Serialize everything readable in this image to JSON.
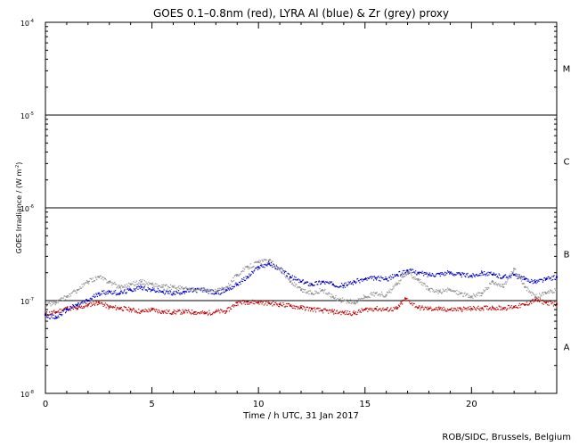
{
  "chart_data": {
    "type": "scatter",
    "title": "GOES 0.1–0.8nm (red), LYRA Al (blue) & Zr (grey) proxy",
    "xlabel": "Time / h UTC, 31 Jan 2017",
    "ylabel": "GOES Irradiance / (W m",
    "ylabel_exp": "-2",
    "ylabel_close": ")",
    "xlim": [
      0,
      24
    ],
    "ylim": [
      1e-08,
      0.0001
    ],
    "yscale": "log",
    "x_ticks": [
      {
        "value": 0,
        "label": "0"
      },
      {
        "value": 5,
        "label": "5"
      },
      {
        "value": 10,
        "label": "10"
      },
      {
        "value": 15,
        "label": "15"
      },
      {
        "value": 20,
        "label": "20"
      }
    ],
    "y_ticks": [
      {
        "value": 1e-08,
        "base": "10",
        "exp": "-8"
      },
      {
        "value": 1e-07,
        "base": "10",
        "exp": "-7"
      },
      {
        "value": 1e-06,
        "base": "10",
        "exp": "-6"
      },
      {
        "value": 1e-05,
        "base": "10",
        "exp": "-5"
      },
      {
        "value": 0.0001,
        "base": "10",
        "exp": "-4"
      }
    ],
    "class_lines": [
      1e-07,
      1e-06,
      1e-05
    ],
    "flare_classes": [
      {
        "label": "A",
        "value": 3.2e-08
      },
      {
        "label": "B",
        "value": 3.2e-07
      },
      {
        "label": "C",
        "value": 3.2e-06
      },
      {
        "label": "M",
        "value": 3.2e-05
      }
    ],
    "series": [
      {
        "color": "#c00000",
        "x": [
          0,
          0.5,
          1,
          1.5,
          2,
          2.5,
          3,
          3.5,
          4,
          4.5,
          5,
          5.5,
          6,
          6.5,
          7,
          7.5,
          8,
          8.5,
          9,
          9.5,
          10,
          10.5,
          11,
          11.5,
          12,
          12.5,
          13,
          13.5,
          14,
          14.5,
          15,
          15.5,
          16,
          16.5,
          16.9,
          17.5,
          18,
          18.5,
          19,
          19.5,
          20,
          20.5,
          21,
          21.5,
          22,
          22.5,
          23,
          23.5,
          24
        ],
        "y": [
          7.2e-08,
          7.5e-08,
          8.3e-08,
          8.2e-08,
          9e-08,
          9.6e-08,
          8.5e-08,
          8.3e-08,
          8e-08,
          7.6e-08,
          8e-08,
          7.6e-08,
          7.5e-08,
          7.6e-08,
          7.5e-08,
          7.3e-08,
          7.6e-08,
          7.7e-08,
          9.5e-08,
          9.7e-08,
          9.6e-08,
          9.4e-08,
          9.1e-08,
          8.8e-08,
          8.4e-08,
          8.1e-08,
          7.8e-08,
          7.6e-08,
          7.4e-08,
          7.3e-08,
          8e-08,
          8.2e-08,
          8e-08,
          8.2e-08,
          1.05e-07,
          8.4e-08,
          8.2e-08,
          8.1e-08,
          8e-08,
          8.1e-08,
          8.2e-08,
          8.3e-08,
          8.4e-08,
          8.3e-08,
          8.6e-08,
          9e-08,
          1.02e-07,
          9.5e-08,
          9.2e-08
        ]
      },
      {
        "color": "#0000c8",
        "x": [
          0,
          0.5,
          1,
          1.5,
          2,
          2.5,
          3,
          3.5,
          4,
          4.5,
          5,
          5.5,
          6,
          6.5,
          7,
          7.5,
          8,
          8.5,
          9,
          9.5,
          10,
          10.5,
          11,
          11.5,
          12,
          12.5,
          13,
          13.5,
          14,
          14.5,
          15,
          15.5,
          16,
          16.5,
          17,
          17.5,
          18,
          18.5,
          19,
          19.5,
          20,
          20.5,
          21,
          21.5,
          22,
          22.5,
          23,
          23.5,
          24
        ],
        "y": [
          7e-08,
          6.5e-08,
          8e-08,
          9e-08,
          1e-07,
          1.2e-07,
          1.25e-07,
          1.2e-07,
          1.3e-07,
          1.4e-07,
          1.3e-07,
          1.25e-07,
          1.2e-07,
          1.25e-07,
          1.3e-07,
          1.3e-07,
          1.2e-07,
          1.3e-07,
          1.5e-07,
          1.8e-07,
          2.3e-07,
          2.5e-07,
          2.2e-07,
          1.8e-07,
          1.6e-07,
          1.5e-07,
          1.6e-07,
          1.5e-07,
          1.45e-07,
          1.6e-07,
          1.7e-07,
          1.75e-07,
          1.7e-07,
          1.9e-07,
          2.1e-07,
          2e-07,
          1.9e-07,
          1.95e-07,
          2e-07,
          1.9e-07,
          1.85e-07,
          2e-07,
          1.9e-07,
          1.8e-07,
          1.9e-07,
          1.7e-07,
          1.6e-07,
          1.7e-07,
          1.8e-07
        ]
      },
      {
        "color": "#909090",
        "x": [
          0,
          0.5,
          1,
          1.5,
          2,
          2.5,
          3,
          3.5,
          4,
          4.5,
          5,
          5.5,
          6,
          6.5,
          7,
          7.5,
          8,
          8.5,
          9,
          9.5,
          10,
          10.5,
          11,
          11.5,
          12,
          12.5,
          13,
          13.5,
          14,
          14.5,
          15,
          15.5,
          16,
          16.5,
          17,
          17.5,
          18,
          18.5,
          19,
          19.5,
          20,
          20.5,
          21,
          21.5,
          22,
          22.5,
          23,
          23.5,
          24
        ],
        "y": [
          9e-08,
          9.5e-08,
          1.1e-07,
          1.3e-07,
          1.6e-07,
          1.8e-07,
          1.6e-07,
          1.4e-07,
          1.5e-07,
          1.6e-07,
          1.5e-07,
          1.4e-07,
          1.4e-07,
          1.35e-07,
          1.3e-07,
          1.3e-07,
          1.25e-07,
          1.4e-07,
          1.9e-07,
          2.3e-07,
          2.6e-07,
          2.7e-07,
          2.2e-07,
          1.6e-07,
          1.3e-07,
          1.2e-07,
          1.3e-07,
          1.1e-07,
          1e-07,
          9.5e-08,
          1.1e-07,
          1.2e-07,
          1.15e-07,
          1.5e-07,
          2e-07,
          1.7e-07,
          1.3e-07,
          1.25e-07,
          1.3e-07,
          1.2e-07,
          1.1e-07,
          1.2e-07,
          1.6e-07,
          1.4e-07,
          2.2e-07,
          1.4e-07,
          1.1e-07,
          1.2e-07,
          1.3e-07
        ]
      }
    ]
  },
  "credit": "ROB/SIDC, Brussels, Belgium"
}
